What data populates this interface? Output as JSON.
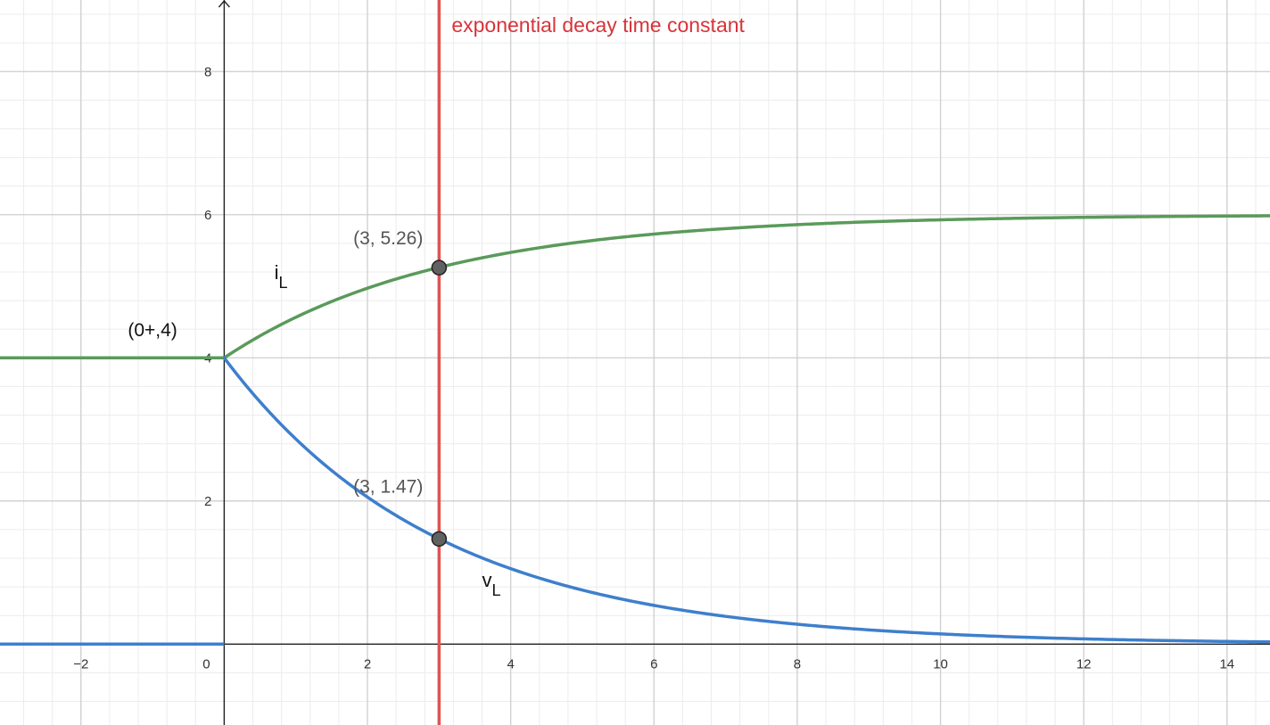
{
  "chart_data": {
    "type": "line",
    "xlim": [
      -3.13,
      14.6
    ],
    "ylim": [
      -1.13,
      9.0
    ],
    "grid": true,
    "x_ticks": [
      -2,
      0,
      2,
      4,
      6,
      8,
      10,
      12,
      14
    ],
    "x_tick_labels": [
      "−2",
      "0",
      "2",
      "4",
      "6",
      "8",
      "10",
      "12",
      "14"
    ],
    "y_ticks": [
      2,
      4,
      6,
      8
    ],
    "y_tick_labels": [
      "2",
      "4",
      "6",
      "8"
    ],
    "series": [
      {
        "name": "i",
        "subscript": "L",
        "color": "#5a9a5a",
        "function": "piecewise: 4 for x<0; 6 - 2*exp(-x/3) for x>=0",
        "label_at": [
          0.7,
          5.1
        ]
      },
      {
        "name": "v",
        "subscript": "L",
        "color": "#3e7fcc",
        "function": "piecewise: 0 for x<0; 4*exp(-x/3) for x>=0",
        "label_at": [
          3.6,
          0.8
        ]
      }
    ],
    "vertical_line": {
      "x": 3,
      "color": "#e05252",
      "label": "exponential decay time constant",
      "label_color": "#d8333a"
    },
    "points": [
      {
        "x": 3,
        "y": 5.26,
        "label": "(3, 5.26)"
      },
      {
        "x": 3,
        "y": 1.47,
        "label": "(3, 1.47)"
      }
    ],
    "annotations": [
      {
        "text": "(0+,4)",
        "x": -1.0,
        "y": 4.3
      }
    ]
  }
}
